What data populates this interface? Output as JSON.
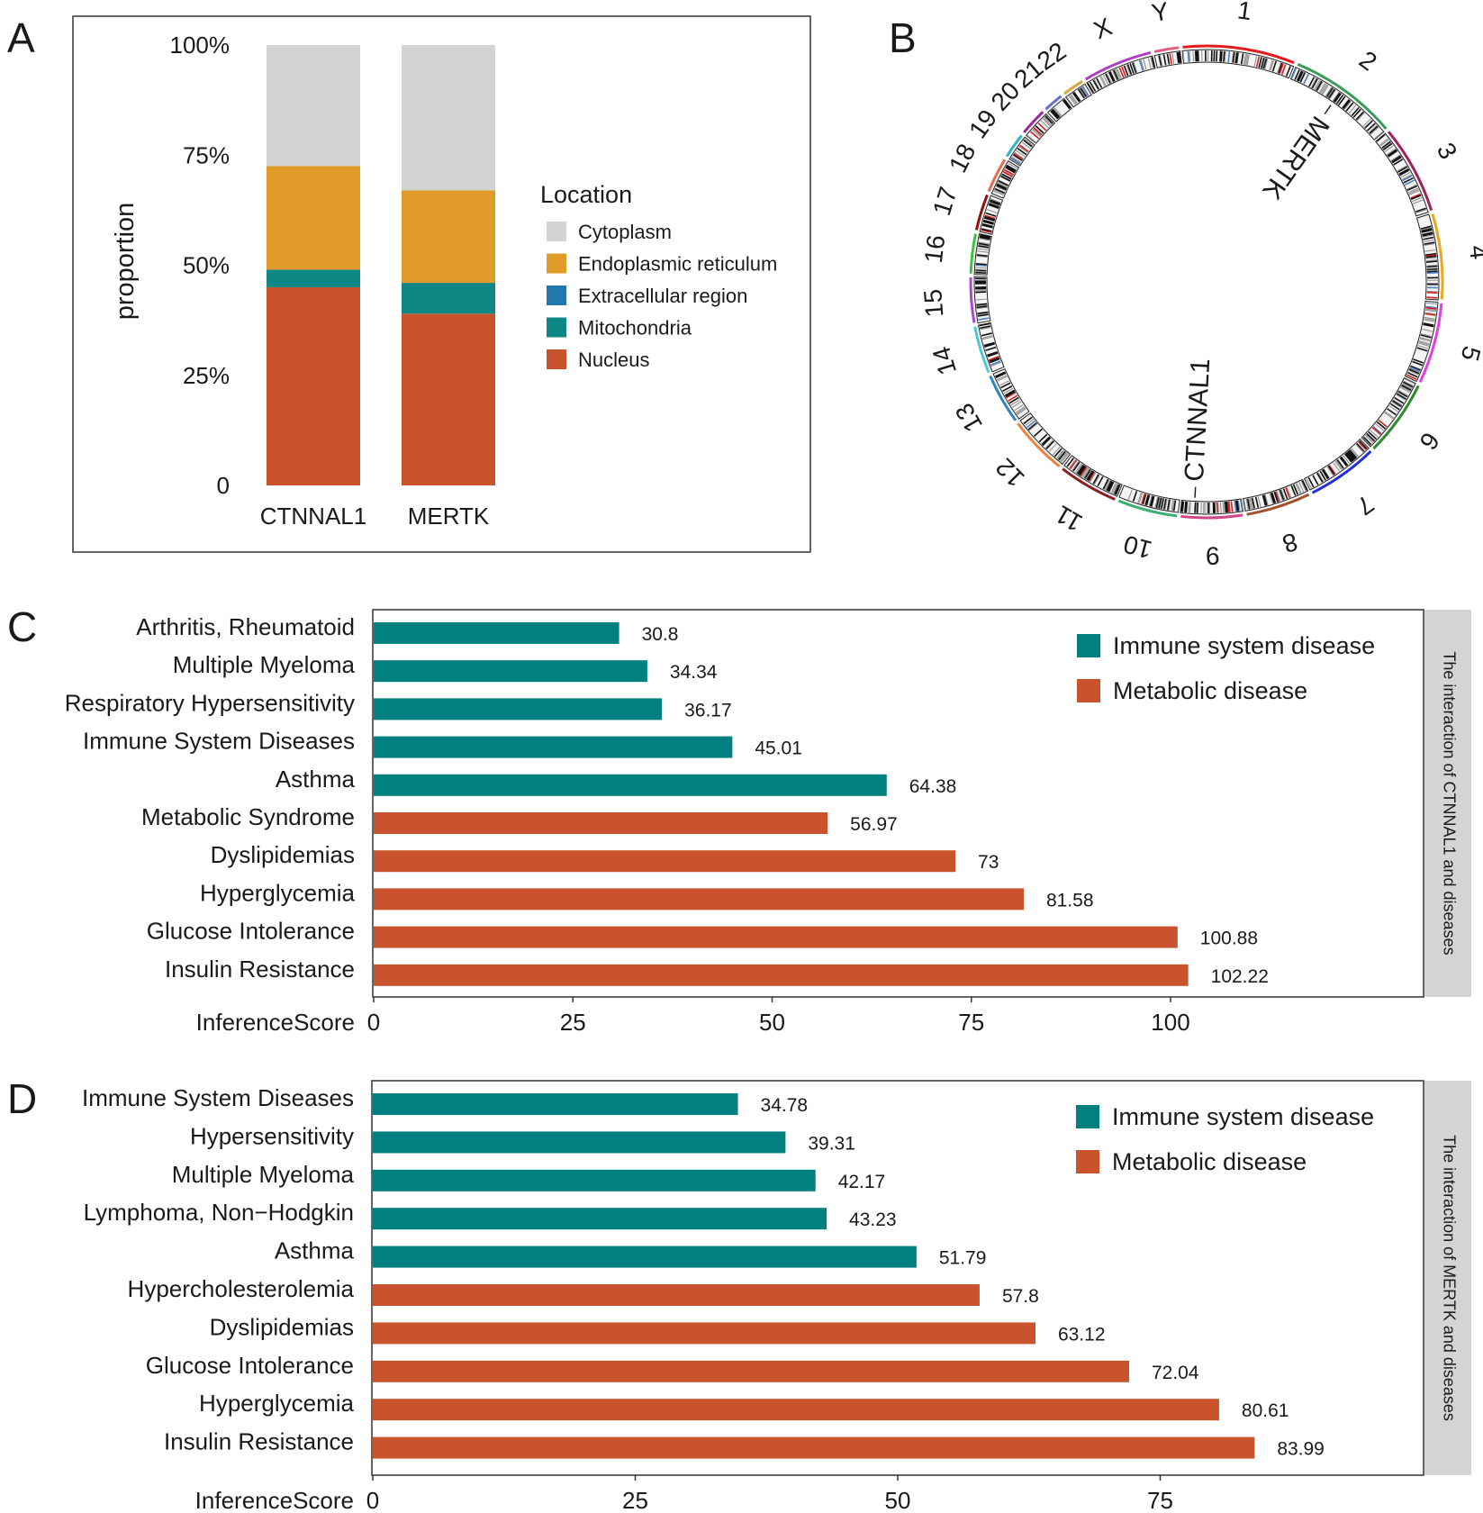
{
  "colors": {
    "cytoplasm": "#d3d3d3",
    "er": "#e09b28",
    "extracellular": "#2277ad",
    "mitochondria": "#0f8784",
    "nucleus": "#c9532d",
    "immune": "#008080",
    "metabolic": "#c9532d",
    "strip": "#d4d4d4"
  },
  "chart_data": [
    {
      "id": "A",
      "panel_label": "A",
      "type": "bar",
      "stacked": true,
      "ylabel": "proportion",
      "yticks": [
        "0",
        "25%",
        "50%",
        "75%",
        "100%"
      ],
      "ylim": [
        0,
        1
      ],
      "categories": [
        "CTNNAL1",
        "MERTK"
      ],
      "legend_title": "Location",
      "legend_position": "right",
      "series": [
        {
          "name": "Nucleus",
          "color_key": "nucleus",
          "values": [
            0.45,
            0.39
          ]
        },
        {
          "name": "Mitochondria",
          "color_key": "mitochondria",
          "values": [
            0.04,
            0.07
          ]
        },
        {
          "name": "Extracellular region",
          "color_key": "extracellular",
          "values": [
            0.0,
            0.0
          ]
        },
        {
          "name": "Endoplasmic reticulum",
          "color_key": "er",
          "values": [
            0.235,
            0.21
          ]
        },
        {
          "name": "Cytoplasm",
          "color_key": "cytoplasm",
          "values": [
            0.275,
            0.33
          ]
        }
      ],
      "legend_order": [
        "Cytoplasm",
        "Endoplasmic reticulum",
        "Extracellular region",
        "Mitochondria",
        "Nucleus"
      ]
    },
    {
      "id": "B",
      "panel_label": "B",
      "type": "circos",
      "chromosomes": [
        "1",
        "2",
        "3",
        "4",
        "5",
        "6",
        "7",
        "8",
        "9",
        "10",
        "11",
        "12",
        "13",
        "14",
        "15",
        "16",
        "17",
        "18",
        "19",
        "20",
        "21",
        "22",
        "X",
        "Y"
      ],
      "chromosome_lengths_mb": [
        249,
        242,
        198,
        190,
        181,
        171,
        159,
        145,
        138,
        134,
        135,
        133,
        114,
        107,
        102,
        90,
        83,
        80,
        59,
        64,
        47,
        51,
        156,
        57
      ],
      "genes": [
        {
          "name": "MERTK",
          "chromosome": "2",
          "position_mb": 112
        },
        {
          "name": "CTNNAL1",
          "chromosome": "9",
          "position_mb": 108
        }
      ]
    },
    {
      "id": "C",
      "panel_label": "C",
      "type": "bar",
      "orientation": "horizontal",
      "xlabel": "InferenceScore",
      "xticks": [
        0,
        25,
        50,
        75,
        100
      ],
      "xlim": [
        0,
        132
      ],
      "strip_label": "The interaction of CTNNAL1 and diseases",
      "legend_position": "top-right",
      "legend": [
        {
          "name": "Immune system disease",
          "color_key": "immune"
        },
        {
          "name": "Metabolic disease",
          "color_key": "metabolic"
        }
      ],
      "categories": [
        "Arthritis, Rheumatoid",
        "Multiple Myeloma",
        "Respiratory Hypersensitivity",
        "Immune System Diseases",
        "Asthma",
        "Metabolic Syndrome",
        "Dyslipidemias",
        "Hyperglycemia",
        "Glucose Intolerance",
        "Insulin Resistance"
      ],
      "values": [
        30.8,
        34.34,
        36.17,
        45.01,
        64.38,
        56.97,
        73,
        81.58,
        100.88,
        102.22
      ],
      "value_labels": [
        "30.8",
        "34.34",
        "36.17",
        "45.01",
        "64.38",
        "56.97",
        "73",
        "81.58",
        "100.88",
        "102.22"
      ],
      "groups": [
        "immune",
        "immune",
        "immune",
        "immune",
        "immune",
        "metabolic",
        "metabolic",
        "metabolic",
        "metabolic",
        "metabolic"
      ]
    },
    {
      "id": "D",
      "panel_label": "D",
      "type": "bar",
      "orientation": "horizontal",
      "xlabel": "InferenceScore",
      "xticks": [
        0,
        25,
        50,
        75
      ],
      "xlim": [
        0,
        100
      ],
      "strip_label": "The interaction of MERTK and diseases",
      "legend_position": "top-right",
      "legend": [
        {
          "name": "Immune system disease",
          "color_key": "immune"
        },
        {
          "name": "Metabolic disease",
          "color_key": "metabolic"
        }
      ],
      "categories": [
        "Immune System Diseases",
        "Hypersensitivity",
        "Multiple Myeloma",
        "Lymphoma, Non−Hodgkin",
        "Asthma",
        "Hypercholesterolemia",
        "Dyslipidemias",
        "Glucose Intolerance",
        "Hyperglycemia",
        "Insulin Resistance"
      ],
      "values": [
        34.78,
        39.31,
        42.17,
        43.23,
        51.79,
        57.8,
        63.12,
        72.04,
        80.61,
        83.99
      ],
      "value_labels": [
        "34.78",
        "39.31",
        "42.17",
        "43.23",
        "51.79",
        "57.8",
        "63.12",
        "72.04",
        "80.61",
        "83.99"
      ],
      "groups": [
        "immune",
        "immune",
        "immune",
        "immune",
        "immune",
        "metabolic",
        "metabolic",
        "metabolic",
        "metabolic",
        "metabolic"
      ]
    }
  ]
}
